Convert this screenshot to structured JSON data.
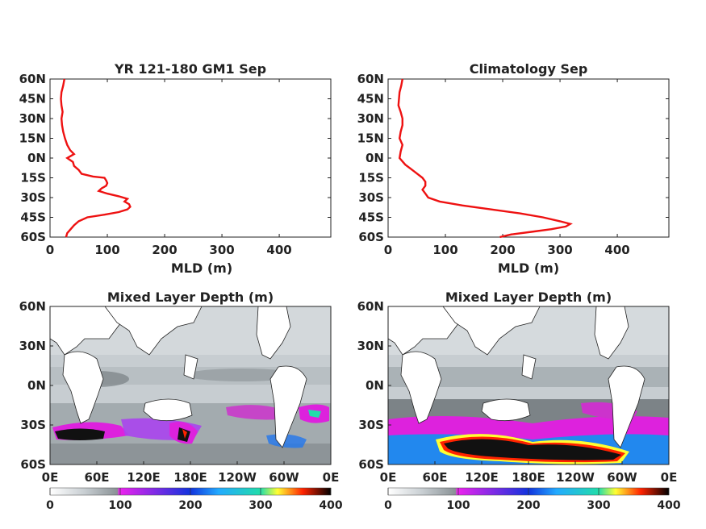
{
  "chart_data": [
    {
      "type": "line",
      "title": "YR 121-180 GM1 Sep",
      "xlabel": "MLD (m)",
      "ylabel": "",
      "xlim": [
        0,
        490
      ],
      "ylim": [
        -60,
        60
      ],
      "x_ticks": [
        "0",
        "100",
        "200",
        "300",
        "400"
      ],
      "y_ticks": [
        "60S",
        "45S",
        "30S",
        "15S",
        "0N",
        "15N",
        "30N",
        "45N",
        "60N"
      ],
      "line_color": "#ee1111",
      "series": [
        {
          "latitude": [
            60,
            55,
            50,
            45,
            40,
            35,
            30,
            25,
            20,
            15,
            10,
            6,
            3,
            0,
            -3,
            -6,
            -9,
            -12,
            -14,
            -15,
            -17,
            -19,
            -21,
            -23,
            -25,
            -27,
            -29,
            -31,
            -33,
            -35,
            -37,
            -39,
            -41,
            -43,
            -45,
            -48,
            -51,
            -54,
            -57,
            -60
          ],
          "mld": [
            25,
            23,
            20,
            19,
            20,
            22,
            20,
            21,
            23,
            26,
            30,
            35,
            42,
            30,
            40,
            42,
            50,
            55,
            75,
            95,
            98,
            100,
            98,
            90,
            85,
            100,
            120,
            135,
            130,
            138,
            140,
            135,
            120,
            95,
            65,
            50,
            42,
            36,
            30,
            28
          ]
        }
      ]
    },
    {
      "type": "line",
      "title": "Climatology Sep",
      "xlabel": "MLD (m)",
      "ylabel": "",
      "xlim": [
        0,
        490
      ],
      "ylim": [
        -60,
        60
      ],
      "x_ticks": [
        "0",
        "100",
        "200",
        "300",
        "400"
      ],
      "y_ticks": [
        "60S",
        "45S",
        "30S",
        "15S",
        "0N",
        "15N",
        "30N",
        "45N",
        "60N"
      ],
      "line_color": "#ee1111",
      "series": [
        {
          "latitude": [
            60,
            55,
            50,
            45,
            40,
            35,
            30,
            25,
            20,
            15,
            10,
            5,
            0,
            -5,
            -10,
            -15,
            -18,
            -21,
            -24,
            -27,
            -30,
            -33,
            -36,
            -39,
            -42,
            -45,
            -48,
            -50,
            -52,
            -54,
            -56,
            -58,
            -60
          ],
          "mld": [
            25,
            23,
            20,
            19,
            18,
            22,
            25,
            25,
            22,
            20,
            25,
            22,
            20,
            30,
            45,
            60,
            65,
            65,
            60,
            65,
            70,
            90,
            130,
            180,
            230,
            270,
            300,
            318,
            310,
            285,
            250,
            215,
            195
          ]
        }
      ]
    },
    {
      "type": "heatmap",
      "title": "Mixed Layer Depth (m)",
      "x_ticks": [
        "0E",
        "60E",
        "120E",
        "180E",
        "120W",
        "60W",
        "0E"
      ],
      "y_ticks": [
        "60S",
        "30S",
        "0N",
        "30N",
        "60N"
      ],
      "colorbar_ticks": [
        "0",
        "100",
        "200",
        "300",
        "400"
      ],
      "colorbar_range": [
        0,
        400
      ]
    },
    {
      "type": "heatmap",
      "title": "Mixed Layer Depth (m)",
      "x_ticks": [
        "0E",
        "60E",
        "120E",
        "180E",
        "120W",
        "60W",
        "0E"
      ],
      "y_ticks": [
        "60S",
        "30S",
        "0N",
        "30N",
        "60N"
      ],
      "colorbar_ticks": [
        "0",
        "100",
        "200",
        "300",
        "400"
      ],
      "colorbar_range": [
        0,
        400
      ]
    }
  ]
}
